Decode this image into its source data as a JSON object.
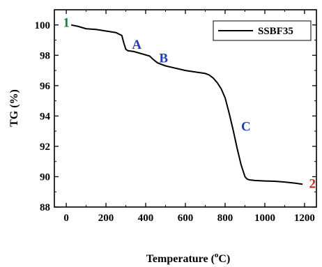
{
  "chart_data": {
    "type": "line",
    "xlabel": "Temperature (",
    "xlabel_sup": "o",
    "xlabel_tail": "C)",
    "ylabel": "TG (%)",
    "xlim": [
      -60,
      1260
    ],
    "ylim": [
      88,
      101
    ],
    "xticks": [
      0,
      200,
      400,
      600,
      800,
      1000,
      1200
    ],
    "yticks": [
      88,
      90,
      92,
      94,
      96,
      98,
      100
    ],
    "grid": false,
    "legend_position": "top-right",
    "series": [
      {
        "name": "SSBF35",
        "color": "#000000",
        "x": [
          25,
          60,
          100,
          150,
          200,
          250,
          280,
          290,
          300,
          310,
          340,
          380,
          420,
          440,
          460,
          480,
          500,
          550,
          600,
          650,
          700,
          720,
          740,
          760,
          780,
          800,
          820,
          840,
          860,
          880,
          900,
          910,
          920,
          930,
          950,
          1000,
          1050,
          1100,
          1150,
          1190
        ],
        "y": [
          100.0,
          99.9,
          99.75,
          99.7,
          99.6,
          99.5,
          99.3,
          98.8,
          98.4,
          98.3,
          98.25,
          98.1,
          97.95,
          97.7,
          97.5,
          97.4,
          97.3,
          97.15,
          97.0,
          96.9,
          96.8,
          96.7,
          96.5,
          96.2,
          95.8,
          95.2,
          94.2,
          93.1,
          91.9,
          90.8,
          90.0,
          89.85,
          89.8,
          89.78,
          89.75,
          89.72,
          89.7,
          89.65,
          89.58,
          89.5
        ]
      }
    ],
    "annotations": [
      {
        "text": "1",
        "x": 0,
        "y": 100.15,
        "color": "#1e7d32"
      },
      {
        "text": "A",
        "x": 355,
        "y": 98.7,
        "color": "#1f3fbf"
      },
      {
        "text": "B",
        "x": 490,
        "y": 97.8,
        "color": "#1f3fbf"
      },
      {
        "text": "C",
        "x": 905,
        "y": 93.3,
        "color": "#1f3fbf"
      },
      {
        "text": "2",
        "x": 1240,
        "y": 89.55,
        "color": "#cc1f1f"
      }
    ]
  }
}
